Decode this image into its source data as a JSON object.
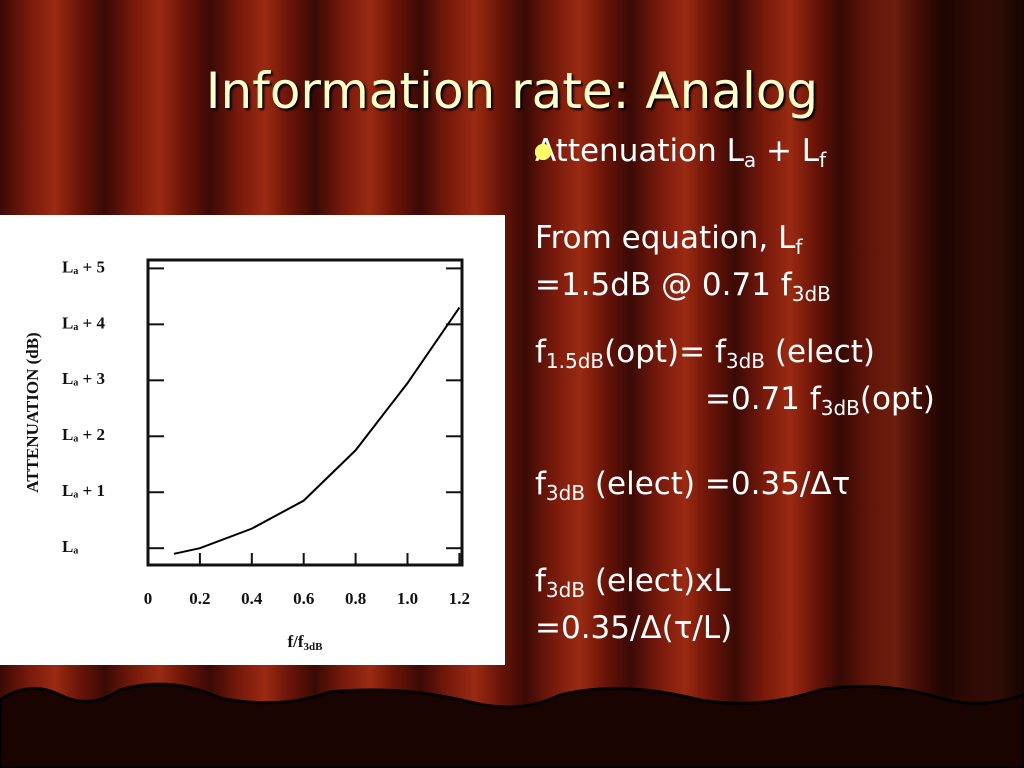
{
  "title": "Information rate: Analog",
  "bullets": [
    {
      "lines": [
        [
          {
            "t": "Attenuation L"
          },
          {
            "sub": "a"
          },
          {
            "t": " + L"
          },
          {
            "sub": "f"
          }
        ]
      ]
    },
    {
      "lines": [
        [
          {
            "t": "From equation, L"
          },
          {
            "sub": "f"
          }
        ],
        [
          {
            "t": "=1.5dB @ 0.71 f"
          },
          {
            "sub": "3dB"
          }
        ]
      ]
    },
    {
      "lines": [
        [
          {
            "t": "f"
          },
          {
            "sub": "1.5dB"
          },
          {
            "t": "(opt)= f"
          },
          {
            "sub": "3dB"
          },
          {
            "t": " (elect)"
          }
        ],
        [
          {
            "t": "=0.71 f"
          },
          {
            "sub": "3dB"
          },
          {
            "t": "(opt)"
          }
        ]
      ]
    },
    {
      "lines": [
        [
          {
            "t": "f"
          },
          {
            "sub": "3dB"
          },
          {
            "t": " (elect) =0.35/Δτ"
          }
        ]
      ]
    },
    {
      "lines": [
        [
          {
            "t": "f"
          },
          {
            "sub": "3dB"
          },
          {
            "t": " (elect)xL"
          }
        ],
        [
          {
            "t": "=0.35/Δ(τ/L)"
          }
        ]
      ]
    }
  ],
  "chart_data": {
    "type": "line",
    "y_label": "ATTENUATION (dB)",
    "x_label": [
      {
        "t": "f/f"
      },
      {
        "sub": "3dB"
      }
    ],
    "x": [
      0.1,
      0.2,
      0.4,
      0.6,
      0.8,
      1.0,
      1.2
    ],
    "values": [
      -0.1,
      0.0,
      0.35,
      0.85,
      1.75,
      2.95,
      4.3
    ],
    "color": "#000000",
    "xlim": [
      0,
      1.21
    ],
    "ylim": [
      -0.3,
      5.15
    ],
    "xticks": [
      0,
      0.2,
      0.4,
      0.6,
      0.8,
      {
        "value": 1,
        "label": "1.0"
      },
      1.2
    ],
    "yticks": [
      {
        "value": 0,
        "label": "Lₐ"
      },
      {
        "value": 1,
        "label": "Lₐ + 1"
      },
      {
        "value": 2,
        "label": "Lₐ + 2"
      },
      {
        "value": 3,
        "label": "Lₐ + 3"
      },
      {
        "value": 4,
        "label": "Lₐ + 4"
      },
      {
        "value": 5,
        "label": "Lₐ + 5"
      }
    ]
  }
}
